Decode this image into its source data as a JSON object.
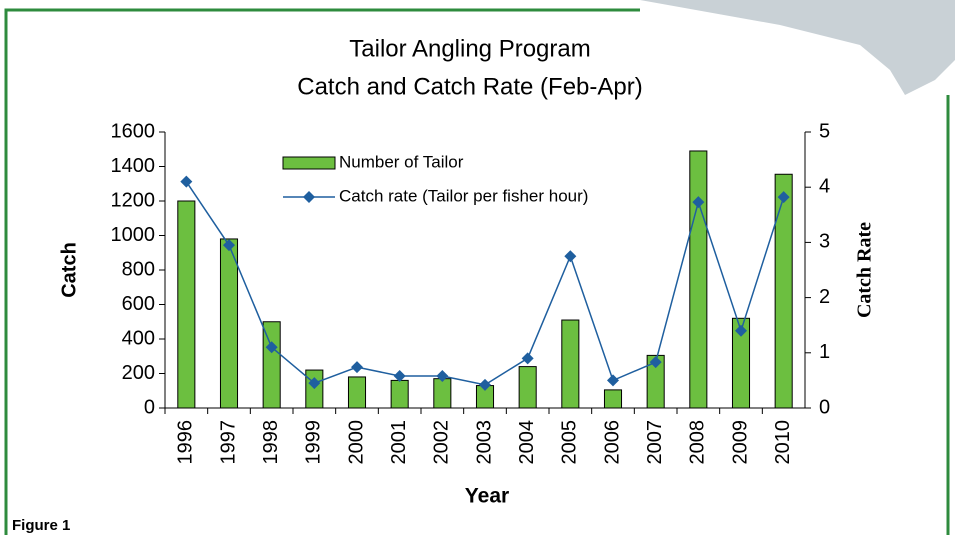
{
  "chart_data": {
    "type": "bar_line",
    "title": [
      "Tailor Angling Program",
      "Catch and Catch Rate (Feb-Apr)"
    ],
    "caption": "Figure 1",
    "x_label": "Year",
    "y_label": "Catch",
    "y2_label": "Catch Rate",
    "categories": [
      "1996",
      "1997",
      "1998",
      "1999",
      "2000",
      "2001",
      "2002",
      "2003",
      "2004",
      "2005",
      "2006",
      "2007",
      "2008",
      "2009",
      "2010"
    ],
    "series": [
      {
        "name": "Number of Tailor",
        "type": "bar",
        "color": "#6cbf40",
        "values": [
          1200,
          980,
          500,
          220,
          180,
          160,
          170,
          130,
          240,
          510,
          105,
          305,
          1490,
          520,
          1355
        ]
      },
      {
        "name": "Catch rate (Tailor per fisher hour)",
        "type": "line",
        "axis": "y2",
        "color": "#1f5f9f",
        "values": [
          4.1,
          2.95,
          1.1,
          0.45,
          0.74,
          0.58,
          0.58,
          0.42,
          0.9,
          2.75,
          0.5,
          0.83,
          3.73,
          1.4,
          3.82
        ]
      }
    ],
    "ylim": [
      0,
      1600
    ],
    "yticks": [
      0,
      200,
      400,
      600,
      800,
      1000,
      1200,
      1400,
      1600
    ],
    "y2lim": [
      0,
      5
    ],
    "y2ticks": [
      0,
      1,
      2,
      3,
      4,
      5
    ],
    "grid": false,
    "legend": "upper left"
  }
}
